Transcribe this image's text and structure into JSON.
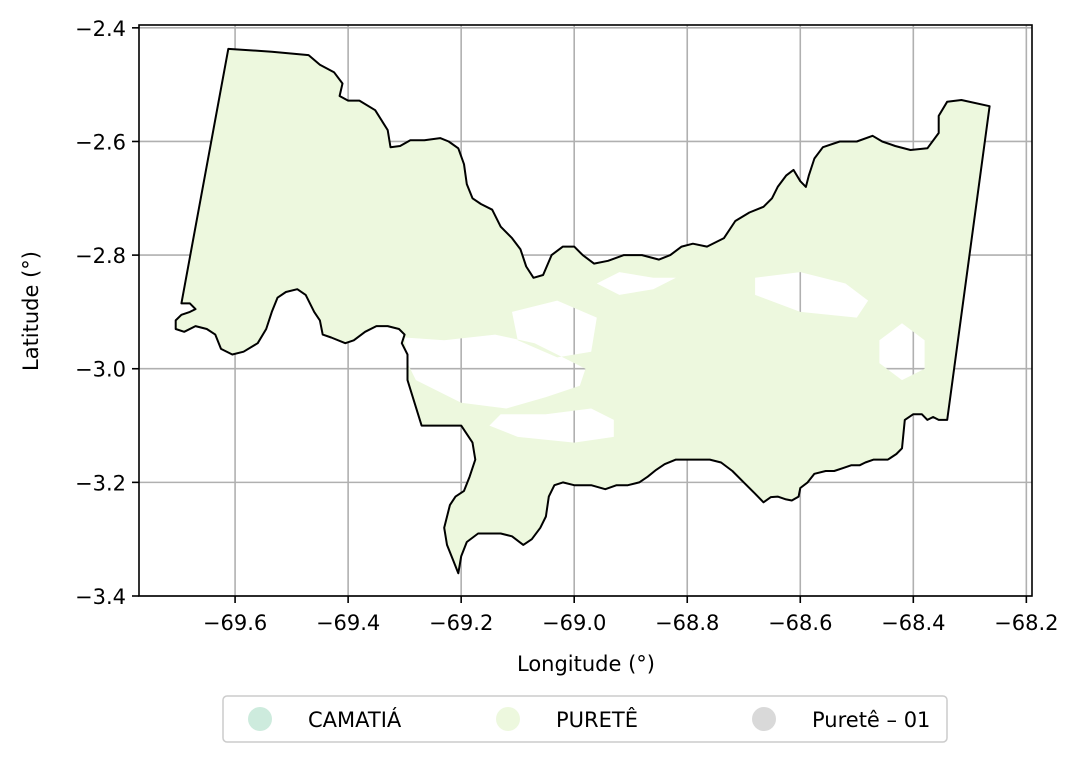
{
  "map": {
    "xlabel": "Longitude (°)",
    "ylabel": "Latitude (°)",
    "xlim": [
      -69.77,
      -68.19
    ],
    "ylim": [
      -3.4,
      -2.395
    ],
    "grid": true,
    "x_ticks": [
      {
        "value": -69.6,
        "label": "−69.6"
      },
      {
        "value": -69.4,
        "label": "−69.4"
      },
      {
        "value": -69.2,
        "label": "−69.2"
      },
      {
        "value": -69.0,
        "label": "−69.0"
      },
      {
        "value": -68.8,
        "label": "−68.8"
      },
      {
        "value": -68.6,
        "label": "−68.6"
      },
      {
        "value": -68.4,
        "label": "−68.4"
      },
      {
        "value": -68.2,
        "label": "−68.2"
      }
    ],
    "y_ticks": [
      {
        "value": -2.4,
        "label": "−2.4"
      },
      {
        "value": -2.6,
        "label": "−2.6"
      },
      {
        "value": -2.8,
        "label": "−2.8"
      },
      {
        "value": -3.0,
        "label": "−3.0"
      },
      {
        "value": -3.2,
        "label": "−3.2"
      },
      {
        "value": -3.4,
        "label": "−3.4"
      }
    ],
    "fill_color": "#edf8de",
    "boundary_color": "#000000",
    "grid_color": "#b0b0b0",
    "boundary": [
      [
        -69.695,
        -2.885
      ],
      [
        -69.612,
        -2.437
      ],
      [
        -69.535,
        -2.442
      ],
      [
        -69.47,
        -2.448
      ],
      [
        -69.45,
        -2.465
      ],
      [
        -69.425,
        -2.478
      ],
      [
        -69.41,
        -2.498
      ],
      [
        -69.415,
        -2.52
      ],
      [
        -69.4,
        -2.528
      ],
      [
        -69.38,
        -2.528
      ],
      [
        -69.352,
        -2.545
      ],
      [
        -69.33,
        -2.58
      ],
      [
        -69.325,
        -2.61
      ],
      [
        -69.308,
        -2.608
      ],
      [
        -69.29,
        -2.598
      ],
      [
        -69.265,
        -2.598
      ],
      [
        -69.237,
        -2.594
      ],
      [
        -69.222,
        -2.6
      ],
      [
        -69.205,
        -2.612
      ],
      [
        -69.195,
        -2.64
      ],
      [
        -69.19,
        -2.675
      ],
      [
        -69.18,
        -2.7
      ],
      [
        -69.165,
        -2.71
      ],
      [
        -69.145,
        -2.72
      ],
      [
        -69.13,
        -2.75
      ],
      [
        -69.11,
        -2.77
      ],
      [
        -69.095,
        -2.79
      ],
      [
        -69.085,
        -2.82
      ],
      [
        -69.072,
        -2.84
      ],
      [
        -69.055,
        -2.835
      ],
      [
        -69.04,
        -2.8
      ],
      [
        -69.02,
        -2.785
      ],
      [
        -69.0,
        -2.785
      ],
      [
        -68.985,
        -2.8
      ],
      [
        -68.965,
        -2.815
      ],
      [
        -68.94,
        -2.81
      ],
      [
        -68.912,
        -2.8
      ],
      [
        -68.88,
        -2.8
      ],
      [
        -68.85,
        -2.808
      ],
      [
        -68.83,
        -2.8
      ],
      [
        -68.81,
        -2.785
      ],
      [
        -68.79,
        -2.78
      ],
      [
        -68.765,
        -2.785
      ],
      [
        -68.735,
        -2.77
      ],
      [
        -68.715,
        -2.74
      ],
      [
        -68.69,
        -2.725
      ],
      [
        -68.665,
        -2.715
      ],
      [
        -68.65,
        -2.7
      ],
      [
        -68.64,
        -2.68
      ],
      [
        -68.625,
        -2.66
      ],
      [
        -68.612,
        -2.65
      ],
      [
        -68.6,
        -2.67
      ],
      [
        -68.59,
        -2.68
      ],
      [
        -68.585,
        -2.66
      ],
      [
        -68.575,
        -2.63
      ],
      [
        -68.56,
        -2.61
      ],
      [
        -68.53,
        -2.6
      ],
      [
        -68.5,
        -2.6
      ],
      [
        -68.472,
        -2.59
      ],
      [
        -68.455,
        -2.6
      ],
      [
        -68.432,
        -2.608
      ],
      [
        -68.405,
        -2.615
      ],
      [
        -68.375,
        -2.612
      ],
      [
        -68.355,
        -2.585
      ],
      [
        -68.355,
        -2.555
      ],
      [
        -68.34,
        -2.53
      ],
      [
        -68.315,
        -2.527
      ],
      [
        -68.265,
        -2.538
      ],
      [
        -68.34,
        -3.09
      ],
      [
        -68.355,
        -3.09
      ],
      [
        -68.365,
        -3.085
      ],
      [
        -68.375,
        -3.09
      ],
      [
        -68.385,
        -3.08
      ],
      [
        -68.4,
        -3.08
      ],
      [
        -68.415,
        -3.09
      ],
      [
        -68.42,
        -3.14
      ],
      [
        -68.43,
        -3.15
      ],
      [
        -68.445,
        -3.16
      ],
      [
        -68.47,
        -3.16
      ],
      [
        -68.485,
        -3.165
      ],
      [
        -68.495,
        -3.17
      ],
      [
        -68.51,
        -3.17
      ],
      [
        -68.525,
        -3.175
      ],
      [
        -68.54,
        -3.18
      ],
      [
        -68.555,
        -3.18
      ],
      [
        -68.575,
        -3.185
      ],
      [
        -68.587,
        -3.2
      ],
      [
        -68.6,
        -3.21
      ],
      [
        -68.603,
        -3.225
      ],
      [
        -68.615,
        -3.232
      ],
      [
        -68.625,
        -3.23
      ],
      [
        -68.64,
        -3.225
      ],
      [
        -68.652,
        -3.226
      ],
      [
        -68.665,
        -3.235
      ],
      [
        -68.68,
        -3.22
      ],
      [
        -68.7,
        -3.2
      ],
      [
        -68.72,
        -3.18
      ],
      [
        -68.74,
        -3.165
      ],
      [
        -68.76,
        -3.16
      ],
      [
        -68.785,
        -3.16
      ],
      [
        -68.805,
        -3.16
      ],
      [
        -68.82,
        -3.16
      ],
      [
        -68.84,
        -3.168
      ],
      [
        -68.855,
        -3.178
      ],
      [
        -68.87,
        -3.19
      ],
      [
        -68.885,
        -3.2
      ],
      [
        -68.905,
        -3.205
      ],
      [
        -68.925,
        -3.205
      ],
      [
        -68.945,
        -3.212
      ],
      [
        -68.97,
        -3.205
      ],
      [
        -68.99,
        -3.205
      ],
      [
        -69.0,
        -3.205
      ],
      [
        -69.02,
        -3.2
      ],
      [
        -69.035,
        -3.205
      ],
      [
        -69.045,
        -3.225
      ],
      [
        -69.05,
        -3.26
      ],
      [
        -69.06,
        -3.28
      ],
      [
        -69.075,
        -3.3
      ],
      [
        -69.09,
        -3.31
      ],
      [
        -69.11,
        -3.295
      ],
      [
        -69.13,
        -3.29
      ],
      [
        -69.15,
        -3.29
      ],
      [
        -69.17,
        -3.29
      ],
      [
        -69.19,
        -3.305
      ],
      [
        -69.2,
        -3.33
      ],
      [
        -69.205,
        -3.36
      ],
      [
        -69.215,
        -3.335
      ],
      [
        -69.225,
        -3.31
      ],
      [
        -69.23,
        -3.28
      ],
      [
        -69.22,
        -3.24
      ],
      [
        -69.21,
        -3.225
      ],
      [
        -69.195,
        -3.215
      ],
      [
        -69.185,
        -3.19
      ],
      [
        -69.175,
        -3.16
      ],
      [
        -69.18,
        -3.13
      ],
      [
        -69.2,
        -3.1
      ],
      [
        -69.27,
        -3.1
      ],
      [
        -69.295,
        -3.02
      ],
      [
        -69.295,
        -2.975
      ],
      [
        -69.305,
        -2.955
      ],
      [
        -69.3,
        -2.94
      ],
      [
        -69.31,
        -2.93
      ],
      [
        -69.33,
        -2.925
      ],
      [
        -69.35,
        -2.925
      ],
      [
        -69.37,
        -2.935
      ],
      [
        -69.39,
        -2.95
      ],
      [
        -69.405,
        -2.955
      ],
      [
        -69.43,
        -2.945
      ],
      [
        -69.445,
        -2.94
      ],
      [
        -69.45,
        -2.915
      ],
      [
        -69.46,
        -2.9
      ],
      [
        -69.475,
        -2.87
      ],
      [
        -69.49,
        -2.86
      ],
      [
        -69.51,
        -2.865
      ],
      [
        -69.525,
        -2.875
      ],
      [
        -69.535,
        -2.9
      ],
      [
        -69.545,
        -2.93
      ],
      [
        -69.56,
        -2.955
      ],
      [
        -69.585,
        -2.97
      ],
      [
        -69.605,
        -2.975
      ],
      [
        -69.625,
        -2.965
      ],
      [
        -69.635,
        -2.94
      ],
      [
        -69.65,
        -2.93
      ],
      [
        -69.67,
        -2.925
      ],
      [
        -69.69,
        -2.935
      ],
      [
        -69.705,
        -2.93
      ],
      [
        -69.705,
        -2.915
      ],
      [
        -69.695,
        -2.905
      ],
      [
        -69.68,
        -2.9
      ],
      [
        -69.67,
        -2.895
      ],
      [
        -69.68,
        -2.885
      ],
      [
        -69.695,
        -2.885
      ]
    ],
    "gaps": [
      [
        [
          -69.3,
          -2.945
        ],
        [
          -69.23,
          -2.95
        ],
        [
          -69.14,
          -2.94
        ],
        [
          -69.07,
          -2.955
        ],
        [
          -69.02,
          -2.98
        ],
        [
          -68.98,
          -3.0
        ],
        [
          -68.99,
          -3.03
        ],
        [
          -69.05,
          -3.05
        ],
        [
          -69.12,
          -3.07
        ],
        [
          -69.2,
          -3.06
        ],
        [
          -69.28,
          -3.02
        ],
        [
          -69.295,
          -2.99
        ]
      ],
      [
        [
          -69.13,
          -3.08
        ],
        [
          -69.05,
          -3.08
        ],
        [
          -68.97,
          -3.07
        ],
        [
          -68.93,
          -3.09
        ],
        [
          -68.93,
          -3.12
        ],
        [
          -69.0,
          -3.13
        ],
        [
          -69.1,
          -3.12
        ],
        [
          -69.15,
          -3.1
        ]
      ],
      [
        [
          -69.11,
          -2.9
        ],
        [
          -69.03,
          -2.88
        ],
        [
          -68.96,
          -2.91
        ],
        [
          -68.97,
          -2.97
        ],
        [
          -69.03,
          -2.98
        ],
        [
          -69.1,
          -2.95
        ]
      ],
      [
        [
          -68.96,
          -2.85
        ],
        [
          -68.92,
          -2.83
        ],
        [
          -68.86,
          -2.84
        ],
        [
          -68.82,
          -2.84
        ],
        [
          -68.86,
          -2.86
        ],
        [
          -68.92,
          -2.87
        ]
      ],
      [
        [
          -68.68,
          -2.84
        ],
        [
          -68.6,
          -2.83
        ],
        [
          -68.52,
          -2.85
        ],
        [
          -68.48,
          -2.88
        ],
        [
          -68.5,
          -2.91
        ],
        [
          -68.6,
          -2.9
        ],
        [
          -68.68,
          -2.87
        ]
      ],
      [
        [
          -68.46,
          -2.95
        ],
        [
          -68.42,
          -2.92
        ],
        [
          -68.38,
          -2.95
        ],
        [
          -68.38,
          -3.0
        ],
        [
          -68.42,
          -3.02
        ],
        [
          -68.46,
          -2.99
        ]
      ]
    ]
  },
  "legend": {
    "items": [
      {
        "label": "CAMATIÁ",
        "color": "#cdebdd"
      },
      {
        "label": "PURETÊ",
        "color": "#edf8de"
      },
      {
        "label": "Puretê – 01",
        "color": "#d9d9d9"
      }
    ]
  }
}
